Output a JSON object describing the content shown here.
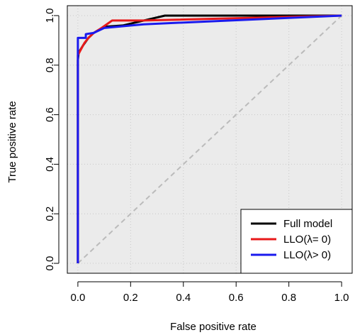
{
  "chart_data": {
    "type": "line",
    "title": "",
    "xlabel": "False positive rate",
    "ylabel": "True positive rate",
    "xlim": [
      -0.04,
      1.04
    ],
    "ylim": [
      -0.04,
      1.04
    ],
    "xticks": [
      0,
      0.2,
      0.4,
      0.6,
      0.8,
      1
    ],
    "xtick_labels": [
      "0.0",
      "0.2",
      "0.4",
      "0.6",
      "0.8",
      "1.0"
    ],
    "yticks": [
      0,
      0.2,
      0.4,
      0.6,
      0.8,
      1
    ],
    "ytick_labels": [
      "0.0",
      "0.2",
      "0.4",
      "0.6",
      "0.8",
      "1.0"
    ],
    "grid": true,
    "background": "#ebebeb",
    "reference_line": {
      "x": [
        0,
        1
      ],
      "y": [
        0,
        1
      ],
      "color": "#bbbbbb",
      "dash": true
    },
    "legend": {
      "position": "bottom-right"
    },
    "series": [
      {
        "name": "Full model",
        "color": "#000000",
        "x": [
          0,
          0,
          0.003,
          0.02,
          0.04,
          0.06,
          0.1,
          0.17,
          0.25,
          0.33,
          0.5,
          1
        ],
        "y": [
          0,
          0.82,
          0.85,
          0.88,
          0.91,
          0.93,
          0.955,
          0.96,
          0.98,
          1,
          1,
          1
        ]
      },
      {
        "name": "LLO(λ= 0)",
        "color": "#e8191a",
        "x": [
          0,
          0,
          0.01,
          0.025,
          0.04,
          0.06,
          0.09,
          0.13,
          0.25,
          1
        ],
        "y": [
          0,
          0.84,
          0.86,
          0.89,
          0.91,
          0.93,
          0.95,
          0.98,
          0.98,
          1
        ]
      },
      {
        "name": "LLO(λ> 0)",
        "color": "#1a1aee",
        "x": [
          0,
          0,
          0.03,
          0.03,
          0.06,
          0.1,
          0.25,
          1
        ],
        "y": [
          0,
          0.91,
          0.91,
          0.925,
          0.93,
          0.95,
          0.965,
          1
        ]
      }
    ]
  }
}
